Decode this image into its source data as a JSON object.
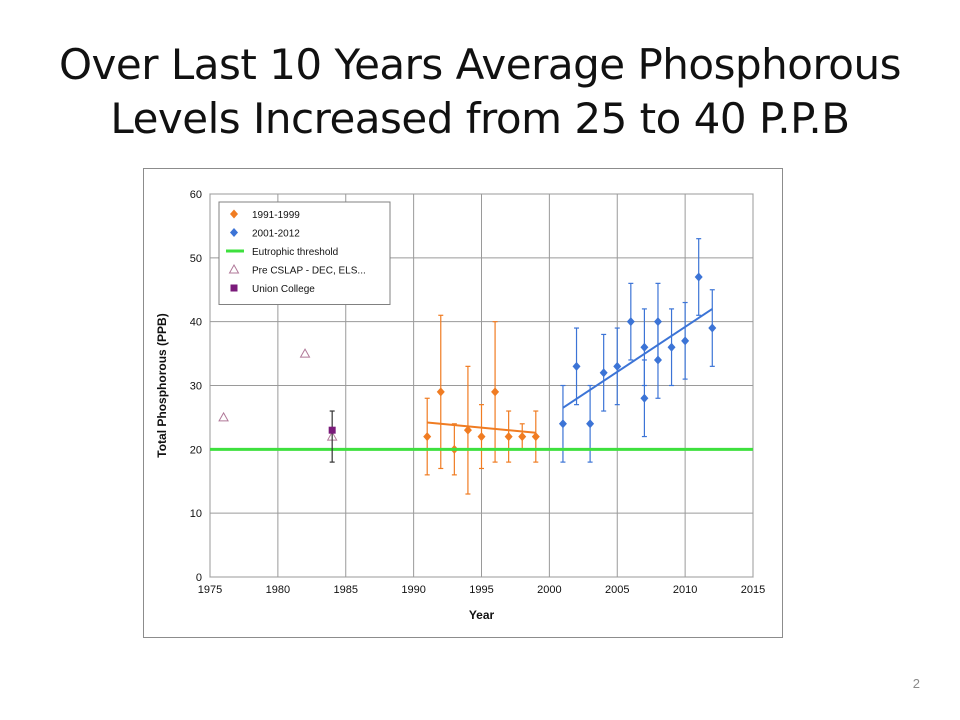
{
  "slide": {
    "title_line1": "Over Last 10 Years Average Phosphorous",
    "title_line2": "Levels Increased from 25 to 40 P.P.B",
    "page_number": "2"
  },
  "chart_data": {
    "type": "scatter",
    "xlabel": "Year",
    "ylabel": "Total Phosphorous  (PPB)",
    "xlim": [
      1975,
      2015
    ],
    "ylim": [
      0,
      60
    ],
    "xticks": [
      1975,
      1980,
      1985,
      1990,
      1995,
      2000,
      2005,
      2010,
      2015
    ],
    "yticks": [
      0,
      10,
      20,
      30,
      40,
      50,
      60
    ],
    "grid": true,
    "legend_placement": "top-left",
    "legend": [
      {
        "label": "1991-1999",
        "color": "#f07c22",
        "marker": "diamond"
      },
      {
        "label": "2001-2012",
        "color": "#3c74d6",
        "marker": "diamond"
      },
      {
        "label": "Eutrophic threshold",
        "color": "#3ee03e",
        "marker": "line"
      },
      {
        "label": "Pre CSLAP - DEC, ELS...",
        "color": "#b07898",
        "marker": "triangle-open"
      },
      {
        "label": "Union College",
        "color": "#7a1a7a",
        "marker": "square"
      }
    ],
    "series": [
      {
        "name": "1991-1999",
        "color": "#f07c22",
        "marker": "diamond",
        "points": [
          {
            "x": 1991,
            "y": 22,
            "err": [
              16,
              28
            ]
          },
          {
            "x": 1992,
            "y": 29,
            "err": [
              17,
              41
            ]
          },
          {
            "x": 1993,
            "y": 20,
            "err": [
              16,
              24
            ]
          },
          {
            "x": 1994,
            "y": 23,
            "err": [
              13,
              33
            ]
          },
          {
            "x": 1995,
            "y": 22,
            "err": [
              17,
              27
            ]
          },
          {
            "x": 1996,
            "y": 29,
            "err": [
              18,
              40
            ]
          },
          {
            "x": 1997,
            "y": 22,
            "err": [
              18,
              26
            ]
          },
          {
            "x": 1998,
            "y": 22,
            "err": [
              20,
              24
            ]
          },
          {
            "x": 1999,
            "y": 22,
            "err": [
              18,
              26
            ]
          }
        ],
        "trend": [
          [
            1991,
            24.2
          ],
          [
            1999,
            22.6
          ]
        ]
      },
      {
        "name": "2001-2012",
        "color": "#3c74d6",
        "marker": "diamond",
        "points": [
          {
            "x": 2001,
            "y": 24,
            "err": [
              18,
              30
            ]
          },
          {
            "x": 2002,
            "y": 33,
            "err": [
              27,
              39
            ]
          },
          {
            "x": 2003,
            "y": 24,
            "err": [
              18,
              30
            ]
          },
          {
            "x": 2004,
            "y": 32,
            "err": [
              26,
              38
            ]
          },
          {
            "x": 2005,
            "y": 33,
            "err": [
              27,
              39
            ]
          },
          {
            "x": 2006,
            "y": 40,
            "err": [
              34,
              46
            ]
          },
          {
            "x": 2007,
            "y": 28,
            "err": [
              22,
              34
            ]
          },
          {
            "x": 2007,
            "y": 36,
            "err": [
              30,
              42
            ]
          },
          {
            "x": 2008,
            "y": 34,
            "err": [
              28,
              40
            ]
          },
          {
            "x": 2008,
            "y": 40,
            "err": [
              34,
              46
            ]
          },
          {
            "x": 2009,
            "y": 36,
            "err": [
              30,
              42
            ]
          },
          {
            "x": 2010,
            "y": 37,
            "err": [
              31,
              43
            ]
          },
          {
            "x": 2011,
            "y": 47,
            "err": [
              41,
              53
            ]
          },
          {
            "x": 2012,
            "y": 39,
            "err": [
              33,
              45
            ]
          }
        ],
        "trend": [
          [
            2001,
            26.5
          ],
          [
            2012,
            42
          ]
        ]
      },
      {
        "name": "Eutrophic threshold",
        "color": "#3ee03e",
        "marker": "line",
        "line": [
          [
            1975,
            20
          ],
          [
            2015,
            20
          ]
        ]
      },
      {
        "name": "Pre CSLAP - DEC, ELS...",
        "color": "#b07898",
        "marker": "triangle-open",
        "points": [
          {
            "x": 1976,
            "y": 25
          },
          {
            "x": 1982,
            "y": 35
          },
          {
            "x": 1984,
            "y": 22
          }
        ]
      },
      {
        "name": "Union College",
        "color": "#7a1a7a",
        "marker": "square",
        "points": [
          {
            "x": 1984,
            "y": 23,
            "err": [
              18,
              26
            ]
          }
        ]
      }
    ]
  }
}
